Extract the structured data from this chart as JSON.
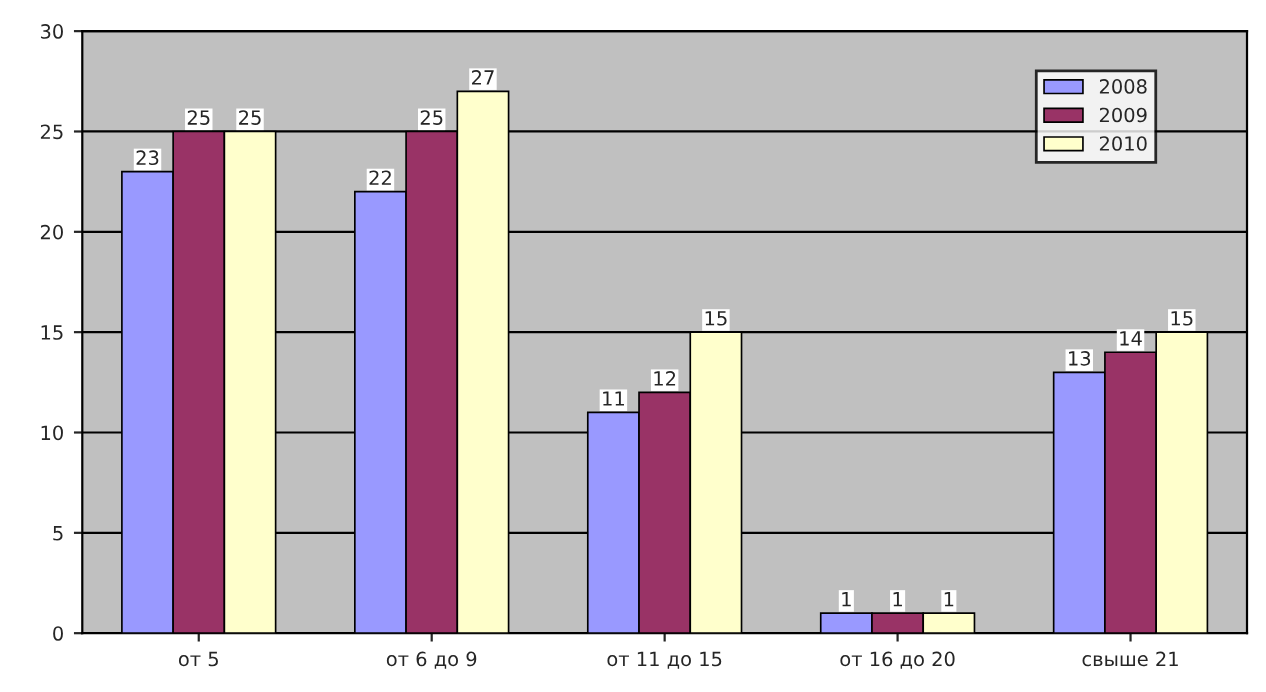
{
  "chart_data": {
    "type": "bar",
    "categories": [
      "от 5",
      "от 6 до 9",
      "от 11 до 15",
      "от 16 до 20",
      "свыше 21"
    ],
    "series": [
      {
        "name": "2008",
        "color": "#9999ff",
        "values": [
          23,
          22,
          11,
          1,
          13
        ]
      },
      {
        "name": "2009",
        "color": "#993366",
        "values": [
          25,
          25,
          12,
          1,
          14
        ]
      },
      {
        "name": "2010",
        "color": "#ffffcc",
        "values": [
          25,
          27,
          15,
          1,
          15
        ]
      }
    ],
    "ylim": [
      0,
      30
    ],
    "yticks": [
      0,
      5,
      10,
      15,
      20,
      25,
      30
    ],
    "grid": "y",
    "legend": "top right",
    "data_labels": true
  }
}
